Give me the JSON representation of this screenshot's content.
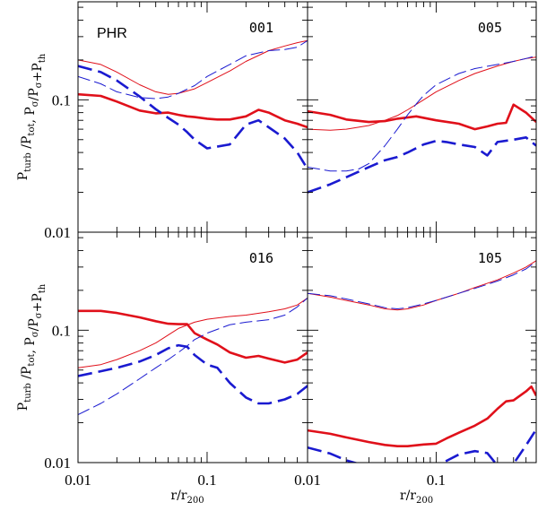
{
  "chart_data": {
    "type": "line",
    "figure_label": "PHR",
    "xlabel": {
      "main": "r/r",
      "sub": "200"
    },
    "ylabel": {
      "line1_parts": [
        {
          "text": "P",
          "sub": "turb"
        },
        {
          "text": " /P",
          "sub": "tot"
        },
        {
          "text": ",  P",
          "sub": "σ"
        },
        {
          "text": "/P",
          "sub": "σ"
        },
        {
          "text": "+P",
          "sub": "th"
        }
      ]
    },
    "xscale": "log",
    "yscale": "log",
    "xlim": [
      0.01,
      0.6
    ],
    "ylim": [
      0.01,
      0.55
    ],
    "x_ticks": [
      {
        "value": 0.01,
        "label": "0.01"
      },
      {
        "value": 0.1,
        "label": "0.1"
      }
    ],
    "y_ticks": [
      {
        "value": 0.01,
        "label": "0.01"
      },
      {
        "value": 0.1,
        "label": "0.1"
      }
    ],
    "series_styles": [
      {
        "name": "P_turb/P_tot (gas, thick solid)",
        "color": "#e0101a",
        "style": "solid",
        "width": "thick"
      },
      {
        "name": "P_sigma/(P_sigma+P_th) (thin solid)",
        "color": "#e0101a",
        "style": "solid",
        "width": "thin"
      },
      {
        "name": "DM thick dashed",
        "color": "#1a1ad0",
        "style": "dashed",
        "width": "thick"
      },
      {
        "name": "DM thin dashed",
        "color": "#1a1ad0",
        "style": "dashed",
        "width": "thin"
      }
    ],
    "panels": [
      {
        "label": "001",
        "series": [
          {
            "style_index": 0,
            "x": [
              0.01,
              0.015,
              0.02,
              0.03,
              0.04,
              0.05,
              0.06,
              0.07,
              0.08,
              0.1,
              0.12,
              0.15,
              0.2,
              0.25,
              0.3,
              0.4,
              0.5,
              0.6
            ],
            "y": [
              0.11,
              0.107,
              0.097,
              0.083,
              0.079,
              0.08,
              0.077,
              0.075,
              0.074,
              0.072,
              0.071,
              0.071,
              0.075,
              0.084,
              0.08,
              0.07,
              0.066,
              0.062
            ]
          },
          {
            "style_index": 1,
            "x": [
              0.01,
              0.015,
              0.02,
              0.03,
              0.04,
              0.05,
              0.06,
              0.08,
              0.1,
              0.15,
              0.2,
              0.3,
              0.4,
              0.5,
              0.6
            ],
            "y": [
              0.2,
              0.185,
              0.162,
              0.13,
              0.115,
              0.11,
              0.112,
              0.121,
              0.135,
              0.165,
              0.195,
              0.235,
              0.255,
              0.27,
              0.28
            ]
          },
          {
            "style_index": 2,
            "x": [
              0.01,
              0.015,
              0.02,
              0.03,
              0.04,
              0.05,
              0.06,
              0.07,
              0.08,
              0.1,
              0.15,
              0.2,
              0.25,
              0.3,
              0.4,
              0.5,
              0.6
            ],
            "y": [
              0.18,
              0.162,
              0.14,
              0.106,
              0.085,
              0.073,
              0.065,
              0.057,
              0.05,
              0.043,
              0.046,
              0.065,
              0.07,
              0.062,
              0.051,
              0.04,
              0.03
            ]
          },
          {
            "style_index": 3,
            "x": [
              0.01,
              0.015,
              0.02,
              0.03,
              0.04,
              0.05,
              0.06,
              0.08,
              0.1,
              0.15,
              0.2,
              0.3,
              0.4,
              0.5,
              0.6
            ],
            "y": [
              0.15,
              0.132,
              0.115,
              0.104,
              0.102,
              0.105,
              0.112,
              0.128,
              0.15,
              0.185,
              0.215,
              0.235,
              0.24,
              0.25,
              0.28
            ]
          }
        ]
      },
      {
        "label": "005",
        "series": [
          {
            "style_index": 0,
            "x": [
              0.01,
              0.015,
              0.02,
              0.03,
              0.04,
              0.05,
              0.07,
              0.1,
              0.15,
              0.2,
              0.25,
              0.3,
              0.35,
              0.4,
              0.5,
              0.6
            ],
            "y": [
              0.082,
              0.077,
              0.071,
              0.068,
              0.069,
              0.072,
              0.075,
              0.07,
              0.066,
              0.06,
              0.063,
              0.066,
              0.067,
              0.092,
              0.08,
              0.068
            ]
          },
          {
            "style_index": 1,
            "x": [
              0.01,
              0.015,
              0.02,
              0.03,
              0.04,
              0.05,
              0.06,
              0.08,
              0.1,
              0.15,
              0.2,
              0.3,
              0.4,
              0.5,
              0.6
            ],
            "y": [
              0.06,
              0.059,
              0.06,
              0.064,
              0.07,
              0.076,
              0.084,
              0.1,
              0.115,
              0.14,
              0.158,
              0.18,
              0.195,
              0.205,
              0.21
            ]
          },
          {
            "style_index": 2,
            "x": [
              0.01,
              0.015,
              0.02,
              0.03,
              0.04,
              0.05,
              0.06,
              0.08,
              0.1,
              0.12,
              0.15,
              0.2,
              0.25,
              0.3,
              0.4,
              0.5,
              0.6
            ],
            "y": [
              0.02,
              0.023,
              0.026,
              0.031,
              0.035,
              0.037,
              0.04,
              0.046,
              0.049,
              0.048,
              0.046,
              0.044,
              0.038,
              0.048,
              0.05,
              0.052,
              0.045
            ]
          },
          {
            "style_index": 3,
            "x": [
              0.01,
              0.015,
              0.02,
              0.025,
              0.03,
              0.04,
              0.05,
              0.06,
              0.07,
              0.08,
              0.1,
              0.15,
              0.2,
              0.3,
              0.4,
              0.5,
              0.6
            ],
            "y": [
              0.031,
              0.029,
              0.029,
              0.03,
              0.033,
              0.045,
              0.06,
              0.077,
              0.093,
              0.108,
              0.13,
              0.158,
              0.172,
              0.185,
              0.195,
              0.205,
              0.215
            ]
          }
        ]
      },
      {
        "label": "016",
        "series": [
          {
            "style_index": 0,
            "x": [
              0.01,
              0.015,
              0.02,
              0.03,
              0.04,
              0.05,
              0.06,
              0.07,
              0.08,
              0.1,
              0.12,
              0.15,
              0.2,
              0.25,
              0.3,
              0.4,
              0.5,
              0.6
            ],
            "y": [
              0.14,
              0.14,
              0.135,
              0.125,
              0.117,
              0.112,
              0.111,
              0.111,
              0.095,
              0.085,
              0.078,
              0.068,
              0.062,
              0.064,
              0.061,
              0.057,
              0.06,
              0.068
            ]
          },
          {
            "style_index": 1,
            "x": [
              0.01,
              0.015,
              0.02,
              0.03,
              0.04,
              0.05,
              0.06,
              0.08,
              0.1,
              0.15,
              0.2,
              0.3,
              0.4,
              0.5,
              0.6
            ],
            "y": [
              0.052,
              0.055,
              0.06,
              0.07,
              0.08,
              0.092,
              0.103,
              0.115,
              0.121,
              0.127,
              0.13,
              0.138,
              0.145,
              0.155,
              0.175
            ]
          },
          {
            "style_index": 2,
            "x": [
              0.01,
              0.015,
              0.02,
              0.03,
              0.04,
              0.05,
              0.06,
              0.07,
              0.08,
              0.1,
              0.12,
              0.15,
              0.2,
              0.25,
              0.3,
              0.4,
              0.5,
              0.6
            ],
            "y": [
              0.045,
              0.049,
              0.052,
              0.058,
              0.065,
              0.073,
              0.077,
              0.075,
              0.065,
              0.055,
              0.052,
              0.04,
              0.031,
              0.028,
              0.028,
              0.03,
              0.033,
              0.038
            ]
          },
          {
            "style_index": 3,
            "x": [
              0.01,
              0.015,
              0.02,
              0.03,
              0.04,
              0.05,
              0.06,
              0.07,
              0.08,
              0.1,
              0.15,
              0.2,
              0.3,
              0.4,
              0.5,
              0.6
            ],
            "y": [
              0.023,
              0.028,
              0.033,
              0.043,
              0.052,
              0.06,
              0.068,
              0.076,
              0.085,
              0.095,
              0.11,
              0.115,
              0.12,
              0.13,
              0.15,
              0.175
            ]
          }
        ]
      },
      {
        "label": "105",
        "series": [
          {
            "style_index": 0,
            "x": [
              0.01,
              0.015,
              0.02,
              0.03,
              0.04,
              0.05,
              0.06,
              0.08,
              0.1,
              0.12,
              0.15,
              0.2,
              0.25,
              0.3,
              0.35,
              0.4,
              0.5,
              0.55,
              0.6
            ],
            "y": [
              0.0175,
              0.0165,
              0.0155,
              0.0143,
              0.0136,
              0.0133,
              0.0133,
              0.0137,
              0.0139,
              0.0152,
              0.0168,
              0.019,
              0.0215,
              0.0255,
              0.029,
              0.0295,
              0.0345,
              0.0375,
              0.032
            ]
          },
          {
            "style_index": 1,
            "x": [
              0.01,
              0.015,
              0.02,
              0.03,
              0.04,
              0.05,
              0.06,
              0.08,
              0.1,
              0.15,
              0.2,
              0.3,
              0.4,
              0.5,
              0.6
            ],
            "y": [
              0.19,
              0.178,
              0.168,
              0.155,
              0.145,
              0.142,
              0.145,
              0.155,
              0.168,
              0.19,
              0.21,
              0.24,
              0.27,
              0.3,
              0.335
            ]
          },
          {
            "style_index": 2,
            "x": [
              0.01,
              0.015,
              0.02,
              0.03,
              0.04,
              0.05,
              0.06,
              0.08,
              0.1,
              0.12,
              0.15,
              0.2,
              0.25,
              0.3,
              0.35,
              0.4,
              0.5,
              0.6
            ],
            "y": [
              0.013,
              0.0117,
              0.0104,
              0.0093,
              0.0085,
              0.0082,
              0.0083,
              0.0088,
              0.0094,
              0.0103,
              0.0115,
              0.0122,
              0.0118,
              0.0095,
              0.0088,
              0.0098,
              0.0135,
              0.0178
            ]
          },
          {
            "style_index": 3,
            "x": [
              0.01,
              0.015,
              0.02,
              0.03,
              0.04,
              0.05,
              0.06,
              0.08,
              0.1,
              0.15,
              0.2,
              0.3,
              0.4,
              0.5,
              0.6
            ],
            "y": [
              0.19,
              0.182,
              0.172,
              0.158,
              0.148,
              0.145,
              0.148,
              0.158,
              0.168,
              0.19,
              0.207,
              0.235,
              0.262,
              0.29,
              0.33
            ]
          }
        ]
      }
    ]
  }
}
